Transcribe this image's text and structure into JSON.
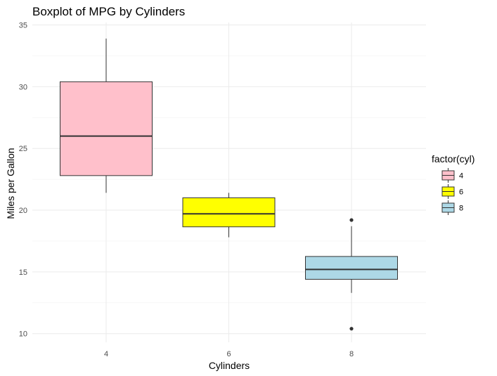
{
  "chart_data": {
    "type": "boxplot",
    "title": "Boxplot of MPG by Cylinders",
    "xlabel": "Cylinders",
    "ylabel": "Miles per Gallon",
    "categories": [
      "4",
      "6",
      "8"
    ],
    "ylim": [
      10,
      35
    ],
    "yticks": [
      10,
      15,
      20,
      25,
      30,
      35
    ],
    "grid": true,
    "legend_position": "right",
    "legend_title": "factor(cyl)",
    "boxes": [
      {
        "category": "4",
        "whisker_low": 21.4,
        "q1": 22.8,
        "median": 26.0,
        "q3": 30.4,
        "whisker_high": 33.9,
        "outliers": [],
        "color": "#ffc0cb"
      },
      {
        "category": "6",
        "whisker_low": 17.8,
        "q1": 18.65,
        "median": 19.7,
        "q3": 21.0,
        "whisker_high": 21.4,
        "outliers": [],
        "color": "#ffff00"
      },
      {
        "category": "8",
        "whisker_low": 13.3,
        "q1": 14.4,
        "median": 15.2,
        "q3": 16.25,
        "whisker_high": 18.7,
        "outliers": [
          10.4,
          19.2
        ],
        "color": "#add8e6"
      }
    ]
  }
}
